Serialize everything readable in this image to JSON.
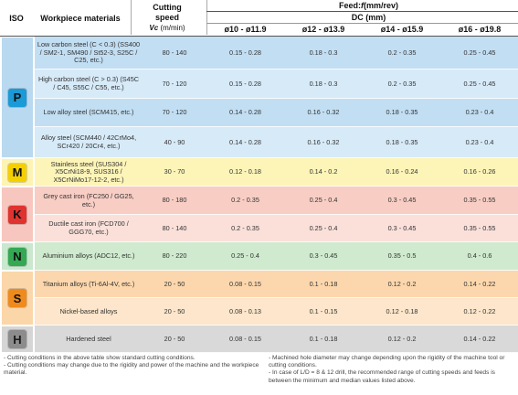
{
  "header": {
    "iso": "ISO",
    "materials": "Workpiece materials",
    "speed_title_1": "Cutting",
    "speed_title_2": "speed",
    "speed_vc": "Vc",
    "speed_unit": "(m/min)",
    "feed_title": "Feed: ",
    "feed_f": "f",
    "feed_unit": " (mm/rev)",
    "dc_title": "DC (mm)",
    "diameters": [
      "ø10 - ø11.9",
      "ø12 - ø13.9",
      "ø14 - ø15.9",
      "ø16 - ø19.8"
    ]
  },
  "groups": [
    {
      "iso": "P",
      "badge_color": "#1a9ad7",
      "band_color": "#b9d9f0"
    },
    {
      "iso": "M",
      "badge_color": "#f5d000",
      "band_color": "#fdf3b3"
    },
    {
      "iso": "K",
      "badge_color": "#e0332f",
      "band_color": "#f7c7bf"
    },
    {
      "iso": "N",
      "badge_color": "#34a853",
      "band_color": "#c9e8cd"
    },
    {
      "iso": "S",
      "badge_color": "#ef8a1c",
      "band_color": "#fbd6a9"
    },
    {
      "iso": "H",
      "badge_color": "#8c8c8c",
      "band_color": "#d5d5d5"
    }
  ],
  "rows": [
    {
      "material": "Low carbon steel (C < 0.3) (SS400 / SM2-1, SM490 / St52-3, S25C / C25, etc.)",
      "speed": "80 - 140",
      "feeds": [
        "0.15 - 0.28",
        "0.18 - 0.3",
        "0.2 - 0.35",
        "0.25 - 0.45"
      ],
      "bg": "#c2def3"
    },
    {
      "material": "High carbon steel (C > 0.3) (S45C / C45, S55C / C55, etc.)",
      "speed": "70 - 120",
      "feeds": [
        "0.15 - 0.28",
        "0.18 - 0.3",
        "0.2 - 0.35",
        "0.25 - 0.45"
      ],
      "bg": "#d7eaf8"
    },
    {
      "material": "Low alloy steel (SCM415, etc.)",
      "speed": "70 - 120",
      "feeds": [
        "0.14 - 0.28",
        "0.16 - 0.32",
        "0.18 - 0.35",
        "0.23 - 0.4"
      ],
      "bg": "#c2def3"
    },
    {
      "material": "Alloy steel (SCM440 / 42CrMo4, SCr420 / 20Cr4, etc.)",
      "speed": "40 - 90",
      "feeds": [
        "0.14 - 0.28",
        "0.16 - 0.32",
        "0.18 - 0.35",
        "0.23 - 0.4"
      ],
      "bg": "#d7eaf8"
    },
    {
      "material": "Stainless steel (SUS304 / X5CrNi18-9, SUS316 / X5CrNiMo17-12-2, etc.)",
      "speed": "30 - 70",
      "feeds": [
        "0.12 - 0.18",
        "0.14 - 0.2",
        "0.16 - 0.24",
        "0.16 - 0.26"
      ],
      "bg": "#fdf4b8"
    },
    {
      "material": "Grey cast iron (FC250 / GG25, etc.)",
      "speed": "80 - 180",
      "feeds": [
        "0.2 - 0.35",
        "0.25 - 0.4",
        "0.3 - 0.45",
        "0.35 - 0.55"
      ],
      "bg": "#f8cdc4"
    },
    {
      "material": "Ductile cast iron (FCD700 / GGG70, etc.)",
      "speed": "80 - 140",
      "feeds": [
        "0.2 - 0.35",
        "0.25 - 0.4",
        "0.3 - 0.45",
        "0.35 - 0.55"
      ],
      "bg": "#fbe0da"
    },
    {
      "material": "Aluminium alloys (ADC12, etc.)",
      "speed": "80 - 220",
      "feeds": [
        "0.25 - 0.4",
        "0.3 - 0.45",
        "0.35 - 0.5",
        "0.4 - 0.6"
      ],
      "bg": "#cfeacf"
    },
    {
      "material": "Titanium alloys (Ti-6Al-4V, etc.)",
      "speed": "20 - 50",
      "feeds": [
        "0.08 - 0.15",
        "0.1 - 0.18",
        "0.12 - 0.2",
        "0.14 - 0.22"
      ],
      "bg": "#fcd7ad"
    },
    {
      "material": "Nickel-based alloys",
      "speed": "20 - 50",
      "feeds": [
        "0.08 - 0.13",
        "0.1 - 0.15",
        "0.12 - 0.18",
        "0.12 - 0.22"
      ],
      "bg": "#fde6cb"
    },
    {
      "material": "Hardened steel",
      "speed": "20 - 50",
      "feeds": [
        "0.08 - 0.15",
        "0.1 - 0.18",
        "0.12 - 0.2",
        "0.14 - 0.22"
      ],
      "bg": "#d9d9d9"
    }
  ],
  "notes": {
    "left": [
      "- Cutting conditions in the above table show standard cutting conditions.",
      "- Cutting conditions may change due to the rigidity and power of the machine and the workpiece material."
    ],
    "right": [
      "- Machined hole diameter may change depending upon the rigidity of the machine tool or cutting conditions.",
      "- In case of L/D = 8 & 12 drill, the recommended range of cutting speeds and feeds is between the minimum and median values listed above."
    ]
  }
}
